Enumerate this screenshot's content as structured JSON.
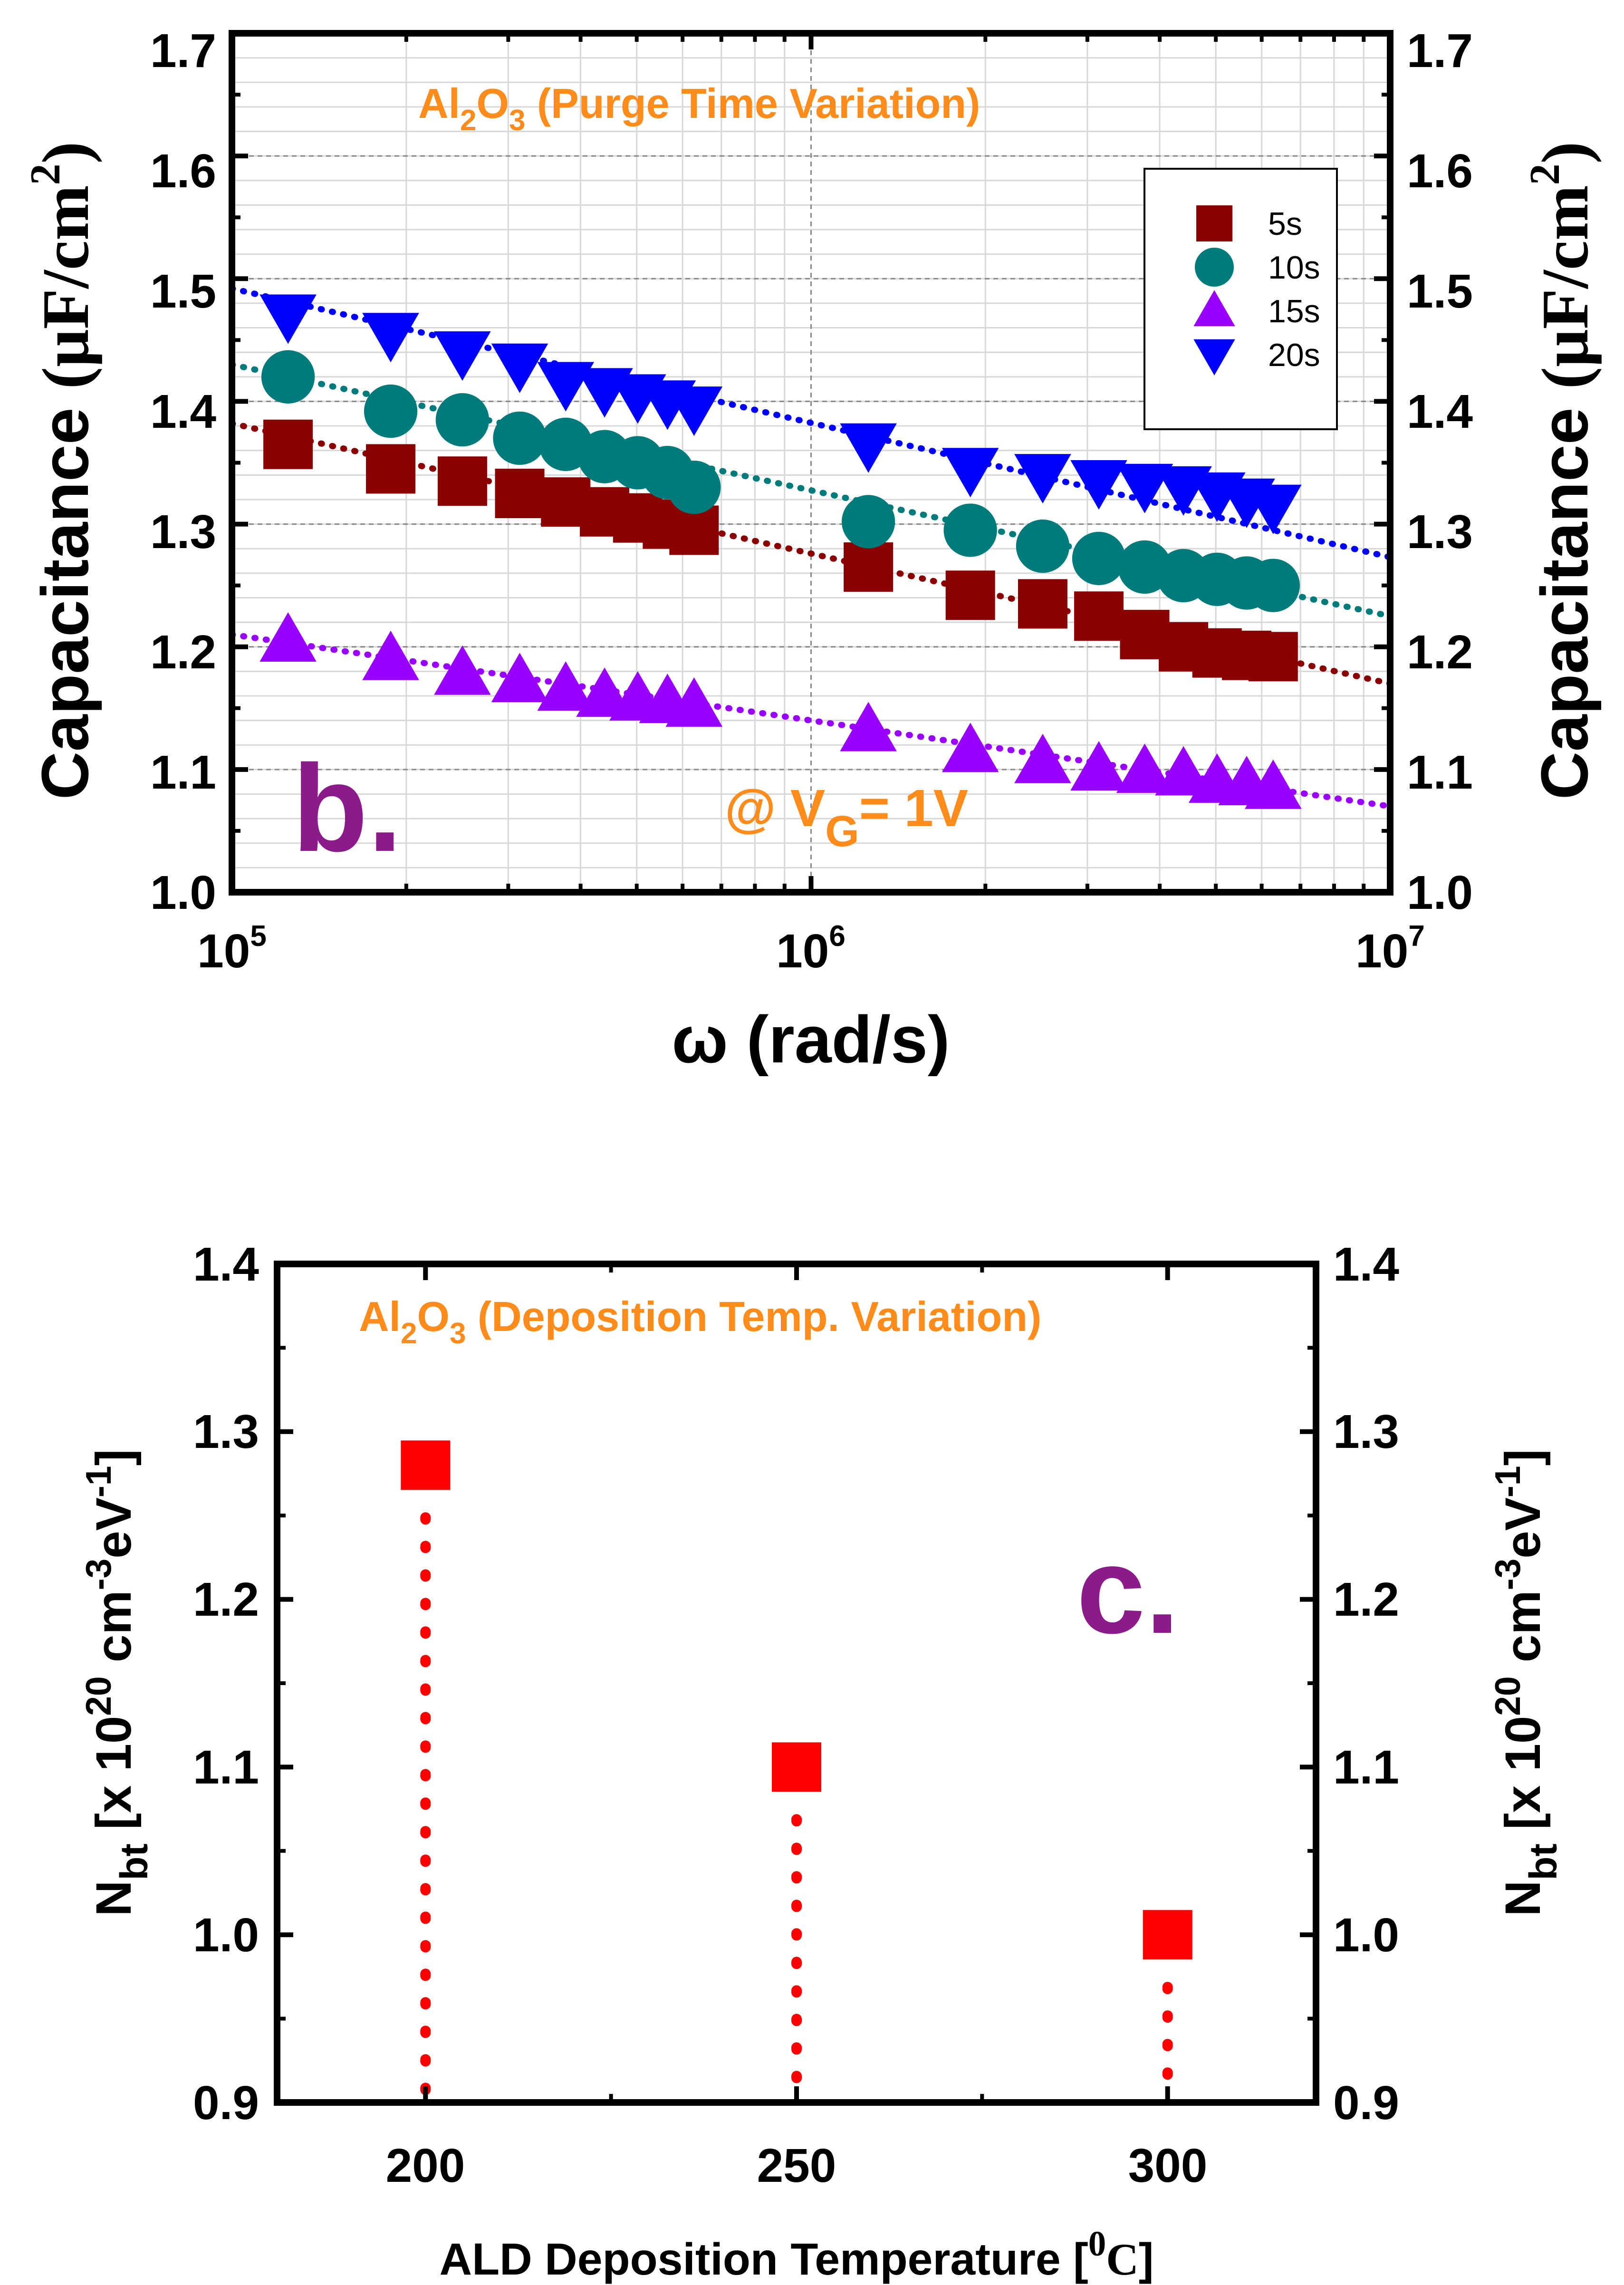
{
  "chart_data": [
    {
      "type": "scatter",
      "panel_label": "b.",
      "title": {
        "base": "Al",
        "sub1": "2",
        "mid": "O",
        "sub2": "3",
        "rest": " (Purge Time Variation)"
      },
      "annotation": {
        "prefix": "@ V",
        "sub": "G",
        "suffix": "= 1V"
      },
      "xlabel": "ω (rad/s)",
      "ylabel": {
        "main": "Capacitance ",
        "unit": "(μF/cm",
        "exp": "2",
        "close": ")"
      },
      "x_scale": "log",
      "xlim": [
        100000,
        10000000
      ],
      "ylim": [
        1.0,
        1.7
      ],
      "x_ticks": [
        {
          "base": "10",
          "exp": "5",
          "value": 100000
        },
        {
          "base": "10",
          "exp": "6",
          "value": 1000000
        },
        {
          "base": "10",
          "exp": "7",
          "value": 10000000
        }
      ],
      "y_ticks": [
        "1.0",
        "1.1",
        "1.2",
        "1.3",
        "1.4",
        "1.5",
        "1.6",
        "1.7"
      ],
      "legend_position": "top-right",
      "x": [
        125000,
        188000,
        250000,
        314000,
        377000,
        440000,
        502000,
        565000,
        628000,
        1256000,
        1884000,
        2512000,
        3140000,
        3768000,
        4396000,
        5024000,
        5652000,
        6280000
      ],
      "series": [
        {
          "name": "5s",
          "marker": "square",
          "color": "#8b0000",
          "values": [
            1.365,
            1.345,
            1.335,
            1.325,
            1.318,
            1.31,
            1.305,
            1.3,
            1.295,
            1.265,
            1.242,
            1.235,
            1.225,
            1.21,
            1.2,
            1.195,
            1.193,
            1.192
          ],
          "fit": [
            1.382,
            1.17
          ]
        },
        {
          "name": "10s",
          "marker": "circle",
          "color": "#007b7b",
          "values": [
            1.42,
            1.392,
            1.385,
            1.37,
            1.365,
            1.355,
            1.35,
            1.342,
            1.33,
            1.302,
            1.295,
            1.282,
            1.272,
            1.265,
            1.258,
            1.255,
            1.252,
            1.25
          ],
          "fit": [
            1.43,
            1.225
          ]
        },
        {
          "name": "15s",
          "marker": "triangle-up",
          "color": "#9900ff",
          "values": [
            1.205,
            1.19,
            1.178,
            1.172,
            1.165,
            1.16,
            1.157,
            1.155,
            1.152,
            1.132,
            1.115,
            1.106,
            1.1,
            1.098,
            1.096,
            1.09,
            1.088,
            1.085
          ],
          "fit": [
            1.21,
            1.07
          ]
        },
        {
          "name": "20s",
          "marker": "triangle-down",
          "color": "#0000ff",
          "values": [
            1.47,
            1.455,
            1.44,
            1.43,
            1.415,
            1.41,
            1.405,
            1.4,
            1.395,
            1.365,
            1.345,
            1.34,
            1.335,
            1.332,
            1.33,
            1.325,
            1.32,
            1.315
          ],
          "fit": [
            1.492,
            1.273
          ]
        }
      ]
    },
    {
      "type": "scatter",
      "panel_label": "c.",
      "title": {
        "base": "Al",
        "sub1": "2",
        "mid": "O",
        "sub2": "3",
        "rest": " (Deposition Temp. Variation)"
      },
      "xlabel": {
        "main": "ALD Deposition Temperature [",
        "sup": "0",
        "unit": "C",
        "close": "]"
      },
      "ylabel": {
        "n": "N",
        "nsub": "bt",
        "p1": " [x 10",
        "e1": "20",
        "p2": " cm",
        "e2": "-3",
        "p3": "eV",
        "e3": "-1",
        "p4": "]"
      },
      "xlim": [
        180,
        320
      ],
      "ylim": [
        0.9,
        1.4
      ],
      "x_ticks": [
        "200",
        "250",
        "300"
      ],
      "y_ticks": [
        "0.9",
        "1.0",
        "1.1",
        "1.2",
        "1.3",
        "1.4"
      ],
      "series": [
        {
          "name": "Nbt",
          "marker": "square",
          "color": "#ff0000",
          "x": [
            200,
            250,
            300
          ],
          "values": [
            1.28,
            1.1,
            1.0
          ]
        }
      ]
    }
  ]
}
